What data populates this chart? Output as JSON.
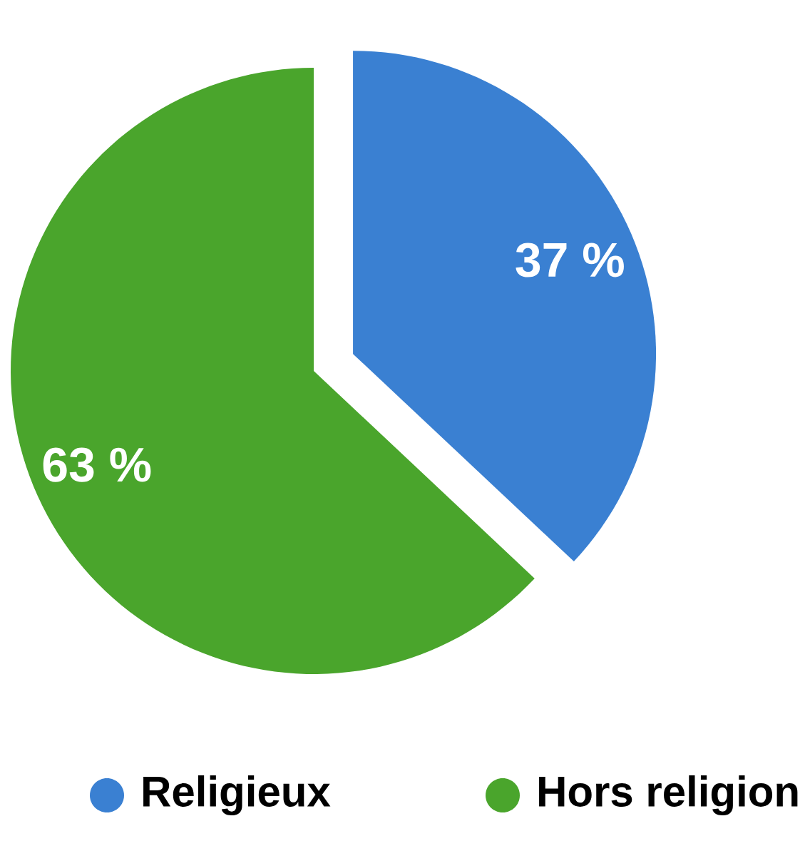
{
  "chart_data": {
    "type": "pie",
    "categories": [
      "Religieux",
      "Hors religion"
    ],
    "values": [
      37,
      63
    ],
    "colors": [
      "#3a80d2",
      "#4aa52c"
    ],
    "value_labels": [
      "37 %",
      "63 %"
    ],
    "legend": "bottom"
  }
}
